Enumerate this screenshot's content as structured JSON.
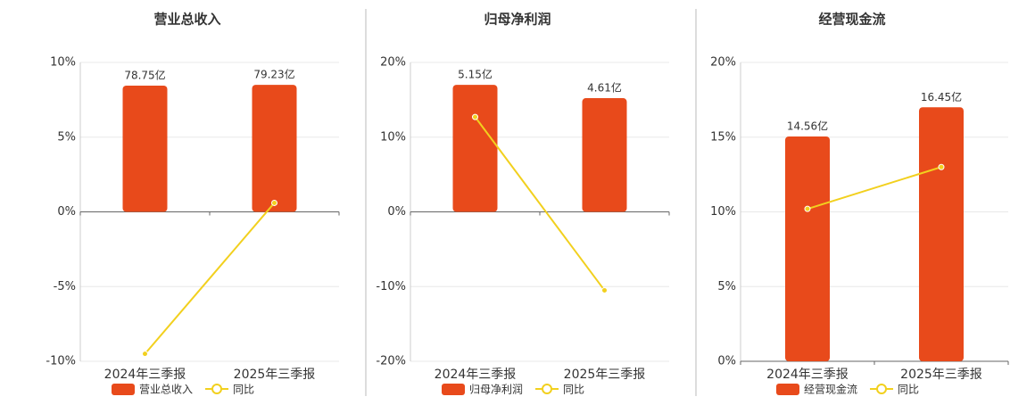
{
  "chart_data": [
    {
      "type": "combo",
      "title": "营业总收入",
      "categories": [
        "2024年三季报",
        "2025年三季报"
      ],
      "series": [
        {
          "name": "营业总收入",
          "type": "bar",
          "color": "#e84a1b",
          "values": [
            78.75,
            79.23
          ],
          "value_labels": [
            "78.75亿",
            "79.23亿"
          ]
        },
        {
          "name": "同比",
          "type": "line",
          "color": "#f2d01e",
          "values": [
            -9.5,
            0.6
          ]
        }
      ],
      "ylim": [
        -10,
        10
      ],
      "yticks": [
        {
          "value": -10,
          "label": "-10%"
        },
        {
          "value": -5,
          "label": "-5%"
        },
        {
          "value": 0,
          "label": "0%"
        },
        {
          "value": 5,
          "label": "5%"
        },
        {
          "value": 10,
          "label": "10%"
        }
      ],
      "grid": true
    },
    {
      "type": "combo",
      "title": "归母净利润",
      "categories": [
        "2024年三季报",
        "2025年三季报"
      ],
      "series": [
        {
          "name": "归母净利润",
          "type": "bar",
          "color": "#e84a1b",
          "values": [
            5.15,
            4.61
          ],
          "value_labels": [
            "5.15亿",
            "4.61亿"
          ]
        },
        {
          "name": "同比",
          "type": "line",
          "color": "#f2d01e",
          "values": [
            12.7,
            -10.5
          ]
        }
      ],
      "ylim": [
        -20,
        20
      ],
      "yticks": [
        {
          "value": -20,
          "label": "-20%"
        },
        {
          "value": -10,
          "label": "-10%"
        },
        {
          "value": 0,
          "label": "0%"
        },
        {
          "value": 10,
          "label": "10%"
        },
        {
          "value": 20,
          "label": "20%"
        }
      ],
      "grid": true
    },
    {
      "type": "combo",
      "title": "经营现金流",
      "categories": [
        "2024年三季报",
        "2025年三季报"
      ],
      "series": [
        {
          "name": "经营现金流",
          "type": "bar",
          "color": "#e84a1b",
          "values": [
            14.56,
            16.45
          ],
          "value_labels": [
            "14.56亿",
            "16.45亿"
          ]
        },
        {
          "name": "同比",
          "type": "line",
          "color": "#f2d01e",
          "values": [
            10.2,
            13
          ]
        }
      ],
      "ylim": [
        0,
        20
      ],
      "yticks": [
        {
          "value": 0,
          "label": "0%"
        },
        {
          "value": 5,
          "label": "5%"
        },
        {
          "value": 10,
          "label": "10%"
        },
        {
          "value": 15,
          "label": "15%"
        },
        {
          "value": 20,
          "label": "20%"
        }
      ],
      "grid": true
    }
  ]
}
